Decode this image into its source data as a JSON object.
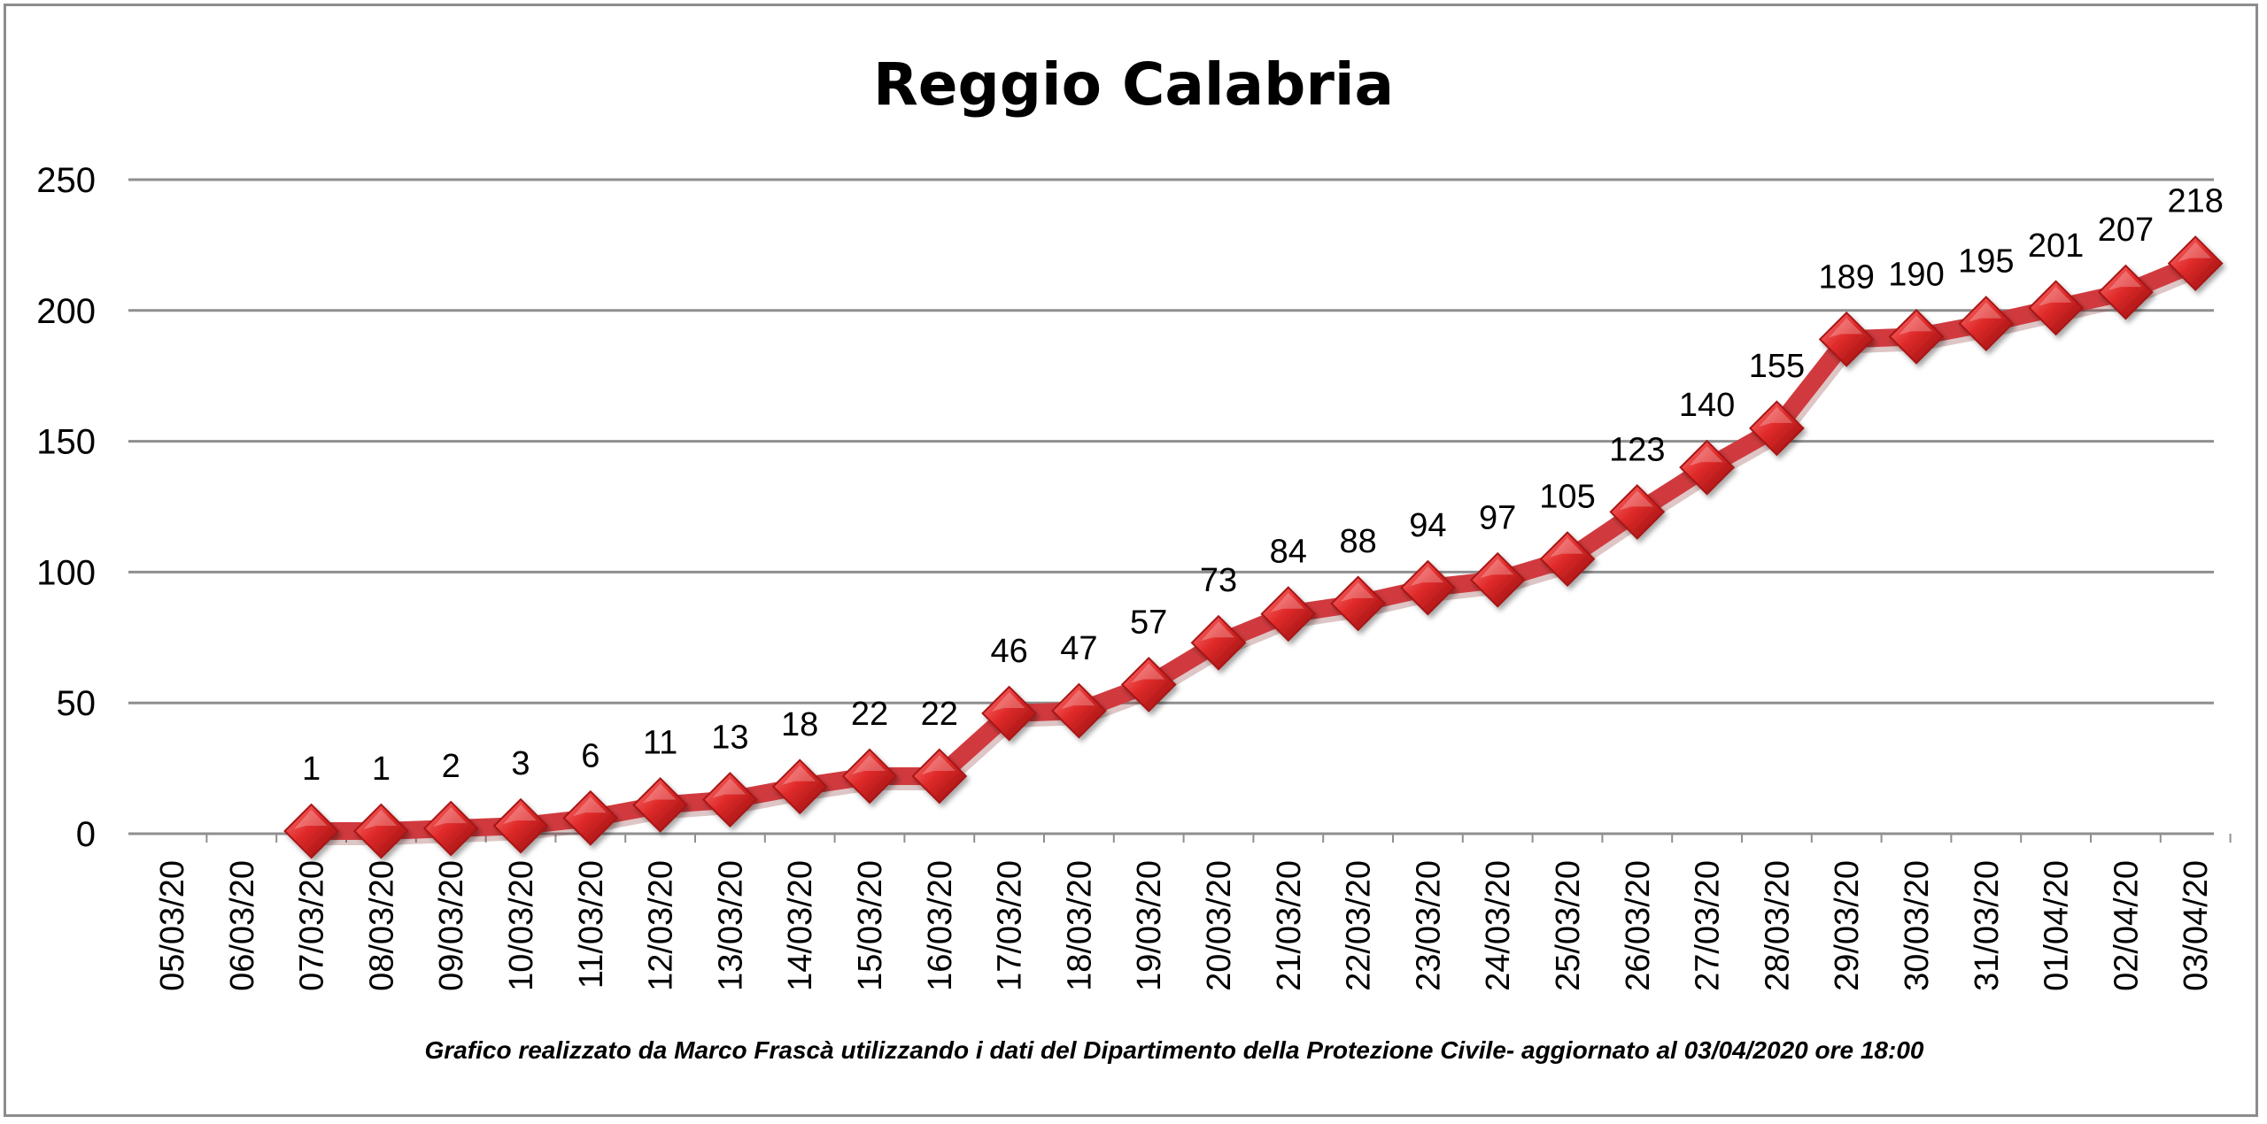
{
  "chart_data": {
    "type": "line",
    "title": "Reggio Calabria",
    "footnote": "Grafico  realizzato da Marco Frascà  utilizzando i dati del Dipartimento  della Protezione Civile- aggiornato al 03/04/2020 ore 18:00",
    "categories": [
      "05/03/20",
      "06/03/20",
      "07/03/20",
      "08/03/20",
      "09/03/20",
      "10/03/20",
      "11/03/20",
      "12/03/20",
      "13/03/20",
      "14/03/20",
      "15/03/20",
      "16/03/20",
      "17/03/20",
      "18/03/20",
      "19/03/20",
      "20/03/20",
      "21/03/20",
      "22/03/20",
      "23/03/20",
      "24/03/20",
      "25/03/20",
      "26/03/20",
      "27/03/20",
      "28/03/20",
      "29/03/20",
      "30/03/20",
      "31/03/20",
      "01/04/20",
      "02/04/20",
      "03/04/20"
    ],
    "series": [
      {
        "values": [
          null,
          null,
          1,
          1,
          2,
          3,
          6,
          11,
          13,
          18,
          22,
          22,
          46,
          47,
          57,
          73,
          84,
          88,
          94,
          97,
          105,
          123,
          140,
          155,
          189,
          190,
          195,
          201,
          207,
          218
        ],
        "color": "#d03a3e"
      }
    ],
    "yticks": [
      "0",
      "50",
      "100",
      "150",
      "200",
      "250"
    ],
    "ylim": [
      0,
      250
    ],
    "grid": true,
    "legend": "none",
    "line_color": "#d03a3e",
    "marker": "diamond"
  }
}
